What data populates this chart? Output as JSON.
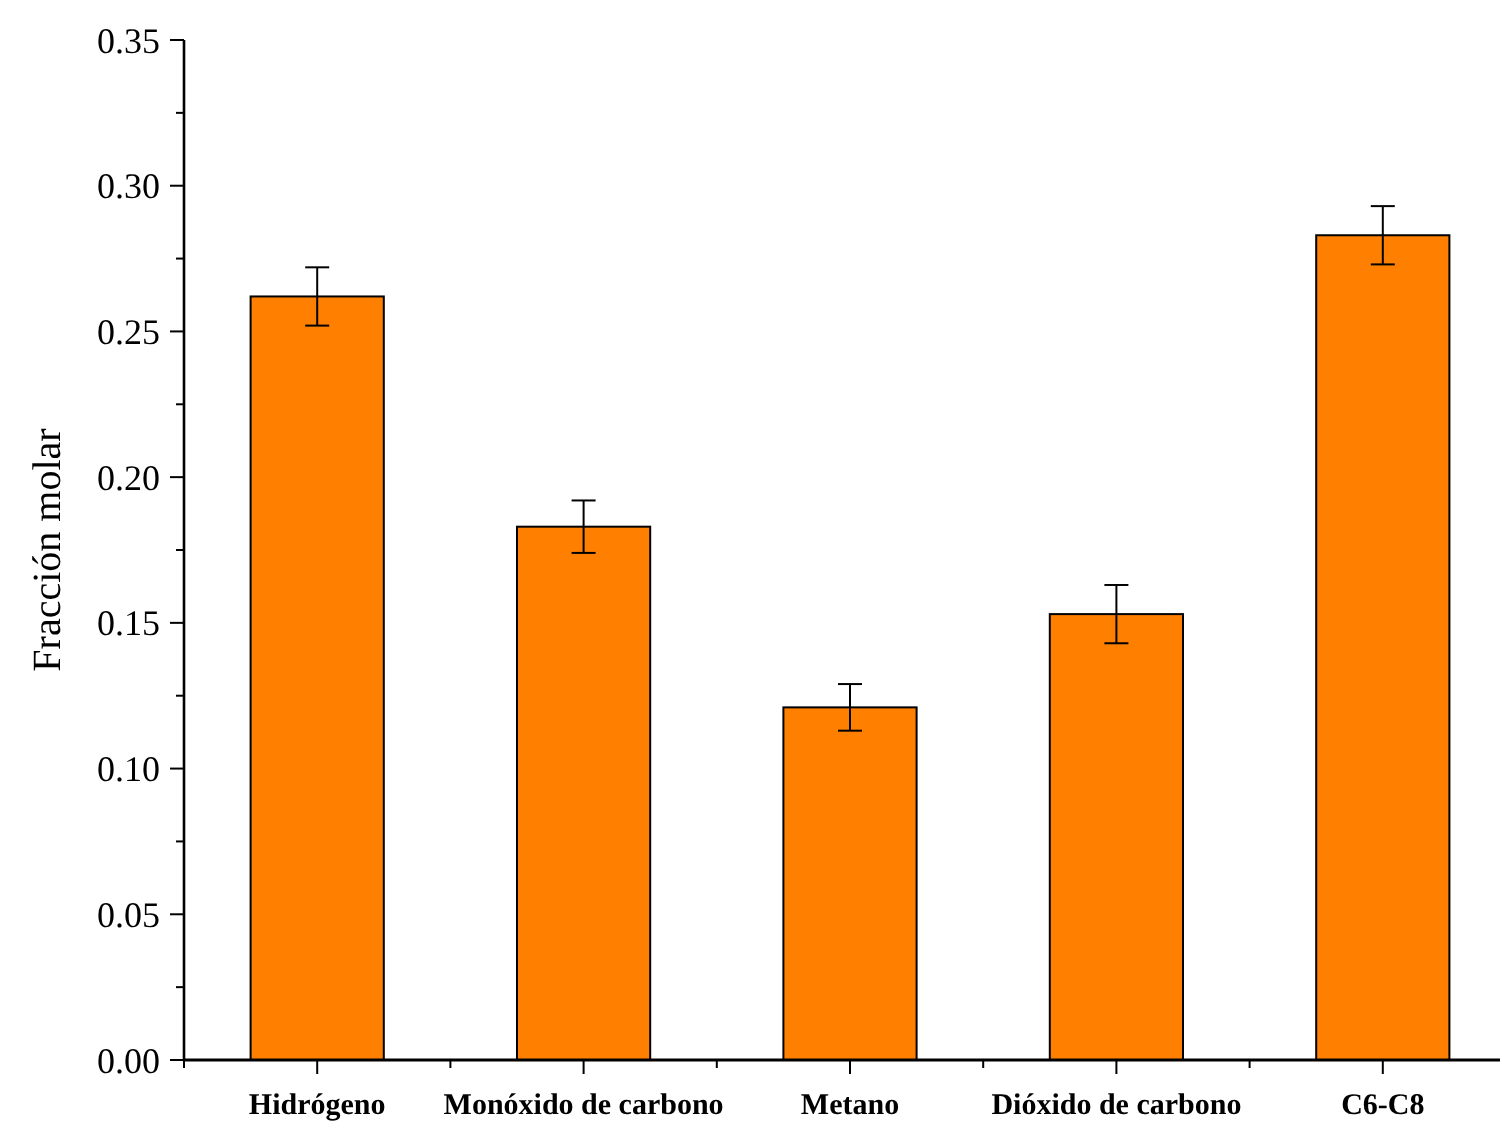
{
  "chart_data": {
    "type": "bar",
    "ylabel": "Fracción molar",
    "categories": [
      "Hidrógeno",
      "Monóxido de carbono",
      "Metano",
      "Dióxido de carbono",
      "C6-C8"
    ],
    "values": [
      0.262,
      0.183,
      0.121,
      0.153,
      0.283
    ],
    "errors": [
      0.01,
      0.009,
      0.008,
      0.01,
      0.01
    ],
    "color": "#ff8000",
    "ylim": [
      0,
      0.35
    ],
    "yticks": [
      {
        "value": 0,
        "label": "0.00"
      },
      {
        "value": 0.025,
        "label": null
      },
      {
        "value": 0.05,
        "label": "0.05"
      },
      {
        "value": 0.075,
        "label": null
      },
      {
        "value": 0.1,
        "label": "0.10"
      },
      {
        "value": 0.125,
        "label": null
      },
      {
        "value": 0.15,
        "label": "0.15"
      },
      {
        "value": 0.175,
        "label": null
      },
      {
        "value": 0.2,
        "label": "0.20"
      },
      {
        "value": 0.225,
        "label": null
      },
      {
        "value": 0.25,
        "label": "0.25"
      },
      {
        "value": 0.275,
        "label": null
      },
      {
        "value": 0.3,
        "label": "0.30"
      },
      {
        "value": 0.325,
        "label": null
      },
      {
        "value": 0.35,
        "label": "0.35"
      }
    ],
    "grid": false
  }
}
